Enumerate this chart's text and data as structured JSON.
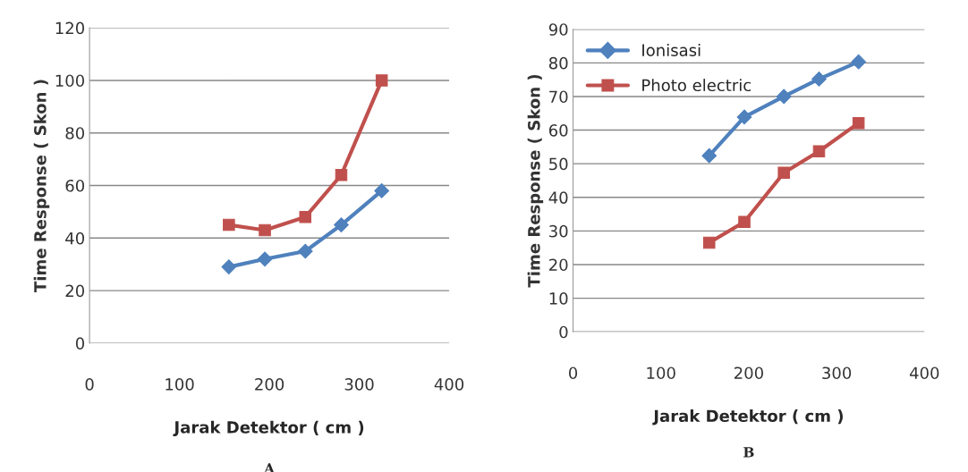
{
  "chart_data": [
    {
      "type": "line",
      "xlabel": "Jarak Detektor ( cm )",
      "ylabel": "Time Response ( Skon )",
      "annotations": [
        "A"
      ],
      "xlim": [
        0,
        400
      ],
      "xticks": [
        0,
        100,
        200,
        300,
        400
      ],
      "ylim": [
        0,
        120
      ],
      "yticks": [
        0,
        20,
        40,
        60,
        80,
        100,
        120
      ],
      "grid": "y",
      "legend": false,
      "series": [
        {
          "color": "#4f81bd",
          "marker": "diamond",
          "x": [
            155,
            195,
            240,
            280,
            325
          ],
          "values": [
            29,
            32,
            35,
            45,
            58
          ]
        },
        {
          "color": "#c0504d",
          "marker": "square",
          "x": [
            155,
            195,
            240,
            280,
            325
          ],
          "values": [
            45,
            43,
            48,
            64,
            100
          ]
        }
      ]
    },
    {
      "type": "line",
      "xlabel": "Jarak Detektor ( cm )",
      "ylabel": "Time Response ( Skon )",
      "annotations": [
        "B"
      ],
      "xlim": [
        0,
        400
      ],
      "xticks": [
        0,
        100,
        200,
        300,
        400
      ],
      "ylim": [
        0,
        90
      ],
      "yticks": [
        0,
        10,
        20,
        30,
        40,
        50,
        60,
        70,
        80,
        90
      ],
      "grid": "y",
      "legend": "top left",
      "series": [
        {
          "name": "Ionisasi",
          "color": "#4f81bd",
          "marker": "diamond",
          "x": [
            155,
            195,
            240,
            280,
            325
          ],
          "values": [
            52.4,
            63.9,
            70,
            75.2,
            80.3
          ]
        },
        {
          "name": "Photo electric",
          "color": "#c0504d",
          "marker": "square",
          "x": [
            155,
            195,
            240,
            280,
            325
          ],
          "values": [
            26.5,
            32.7,
            47.3,
            53.7,
            62.1
          ]
        }
      ]
    }
  ]
}
